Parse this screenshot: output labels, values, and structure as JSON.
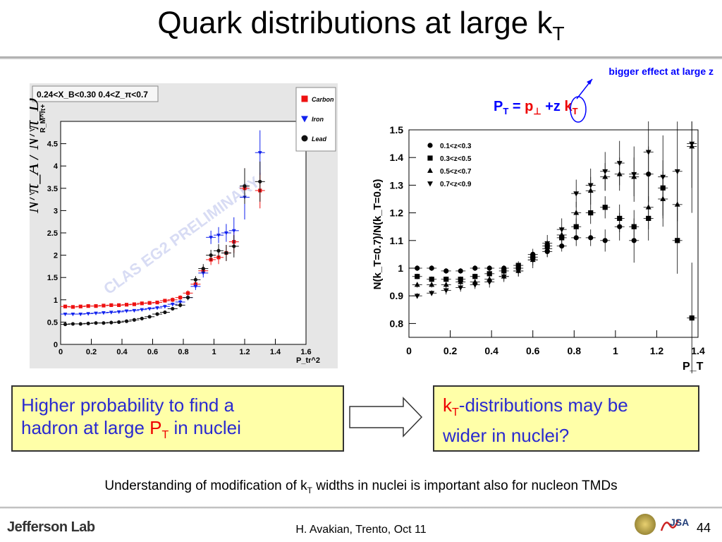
{
  "slide": {
    "title_main": "Quark distributions at large k",
    "title_sub": "T",
    "note": "bigger effect at large z",
    "formula": {
      "pt": "P",
      "pt_sub": "T",
      "eq": " = ",
      "pperp": "p",
      "pperp_sub": "⊥",
      "plus": " +z ",
      "kt": "k",
      "kt_sub": "T"
    },
    "box_left": {
      "line1": "Higher probability to find a",
      "line2_pre": "hadron at large ",
      "p": "P",
      "p_sub": "T",
      "line2_post": " in nuclei"
    },
    "box_right": {
      "k": "k",
      "k_sub": "T",
      "line1_post": "-distributions may be",
      "line2": "wider in nuclei?"
    },
    "bottom_pre": "Understanding of modification of k",
    "bottom_sub": "T",
    "bottom_post": " widths in nuclei is important  also for nucleon TMDs",
    "logo": "Jefferson Lab",
    "seal_text": "JSA",
    "footer": "H. Avakian, Trento, Oct 11",
    "page": "44",
    "colors": {
      "title_text": "#000000",
      "box_fill": "#ffffa8",
      "box_text": "#2a2ad0",
      "highlight_red": "#e00000",
      "accent_blue": "#0000ff"
    }
  },
  "chart_data": [
    {
      "type": "scatter",
      "title": "0.24<X_B<0.30   0.4<Z_π<0.7",
      "ylabel": "R_M^π+",
      "ylabel_big": "N^π_A / N^π_D",
      "xlabel": "P_tr^2",
      "watermark": "CLAS EG2 PRELIMINARY",
      "xlim": [
        0,
        1.6
      ],
      "ylim": [
        0,
        5
      ],
      "xticks": [
        "0",
        "0.2",
        "0.4",
        "0.6",
        "0.8",
        "1",
        "1.2",
        "1.4",
        "1.6"
      ],
      "yticks": [
        "0",
        "0.5",
        "1",
        "1.5",
        "2",
        "2.5",
        "3",
        "3.5",
        "4",
        "4.5"
      ],
      "legend_position": "top-right",
      "series": [
        {
          "name": "Carbon",
          "color": "#ee1111",
          "marker": "square",
          "x": [
            0.03,
            0.08,
            0.13,
            0.18,
            0.23,
            0.28,
            0.33,
            0.38,
            0.43,
            0.48,
            0.53,
            0.58,
            0.63,
            0.68,
            0.73,
            0.78,
            0.83,
            0.88,
            0.93,
            0.98,
            1.03,
            1.08,
            1.13,
            1.2,
            1.3
          ],
          "y": [
            0.85,
            0.84,
            0.85,
            0.86,
            0.86,
            0.87,
            0.88,
            0.88,
            0.89,
            0.9,
            0.92,
            0.93,
            0.94,
            0.98,
            1.0,
            1.05,
            1.15,
            1.35,
            1.65,
            1.9,
            1.95,
            2.05,
            2.3,
            3.5,
            3.45
          ],
          "err": [
            0.04,
            0.03,
            0.03,
            0.03,
            0.03,
            0.03,
            0.03,
            0.03,
            0.03,
            0.03,
            0.03,
            0.04,
            0.04,
            0.04,
            0.05,
            0.05,
            0.06,
            0.08,
            0.1,
            0.12,
            0.15,
            0.18,
            0.25,
            0.45,
            0.4
          ]
        },
        {
          "name": "Iron",
          "color": "#1122ee",
          "marker": "triangle-down",
          "x": [
            0.03,
            0.08,
            0.13,
            0.18,
            0.23,
            0.28,
            0.33,
            0.38,
            0.43,
            0.48,
            0.53,
            0.58,
            0.63,
            0.68,
            0.73,
            0.78,
            0.83,
            0.88,
            0.93,
            0.98,
            1.03,
            1.08,
            1.13,
            1.2,
            1.3
          ],
          "y": [
            0.68,
            0.68,
            0.68,
            0.69,
            0.7,
            0.71,
            0.72,
            0.73,
            0.75,
            0.76,
            0.78,
            0.8,
            0.82,
            0.85,
            0.9,
            0.95,
            1.05,
            1.3,
            1.6,
            2.4,
            2.45,
            2.5,
            2.55,
            3.3,
            4.3
          ],
          "err": [
            0.03,
            0.03,
            0.03,
            0.03,
            0.03,
            0.03,
            0.03,
            0.03,
            0.03,
            0.03,
            0.03,
            0.03,
            0.04,
            0.04,
            0.04,
            0.05,
            0.06,
            0.08,
            0.1,
            0.15,
            0.18,
            0.2,
            0.3,
            0.5,
            0.5
          ]
        },
        {
          "name": "Lead",
          "color": "#111111",
          "marker": "circle",
          "x": [
            0.03,
            0.08,
            0.13,
            0.18,
            0.23,
            0.28,
            0.33,
            0.38,
            0.43,
            0.48,
            0.53,
            0.58,
            0.63,
            0.68,
            0.73,
            0.78,
            0.83,
            0.88,
            0.93,
            0.98,
            1.03,
            1.08,
            1.13,
            1.2,
            1.3
          ],
          "y": [
            0.45,
            0.46,
            0.46,
            0.47,
            0.48,
            0.48,
            0.49,
            0.5,
            0.52,
            0.55,
            0.58,
            0.62,
            0.68,
            0.72,
            0.8,
            0.88,
            1.05,
            1.45,
            1.7,
            2.0,
            2.1,
            2.05,
            2.2,
            3.55,
            3.65
          ],
          "err": [
            0.03,
            0.03,
            0.03,
            0.03,
            0.03,
            0.03,
            0.03,
            0.03,
            0.03,
            0.03,
            0.03,
            0.03,
            0.04,
            0.04,
            0.04,
            0.05,
            0.06,
            0.08,
            0.1,
            0.12,
            0.15,
            0.18,
            0.25,
            0.4,
            0.45
          ]
        }
      ]
    },
    {
      "type": "scatter",
      "ylabel": "N(k_T=0.7)/N(k_T=0.6)",
      "xlabel": "P_T",
      "xlim": [
        0,
        1.4
      ],
      "ylim": [
        0.75,
        1.5
      ],
      "xticks": [
        "0",
        "0.2",
        "0.4",
        "0.6",
        "0.8",
        "1",
        "1.2",
        "1.4"
      ],
      "yticks": [
        "0.8",
        "0.9",
        "1",
        "1.1",
        "1.2",
        "1.3",
        "1.4",
        "1.5"
      ],
      "legend_position": "top-left",
      "series": [
        {
          "name": "0.1<z<0.3",
          "marker": "circle",
          "x": [
            0.04,
            0.11,
            0.18,
            0.25,
            0.32,
            0.39,
            0.46,
            0.53,
            0.6,
            0.67,
            0.74,
            0.81,
            0.88,
            0.95,
            1.02,
            1.09,
            1.16
          ],
          "y": [
            1.0,
            1.0,
            0.99,
            0.99,
            1.0,
            1.0,
            1.0,
            1.0,
            1.05,
            1.06,
            1.08,
            1.11,
            1.11,
            1.1,
            1.15,
            1.1,
            1.34
          ],
          "err": [
            0.01,
            0.01,
            0.01,
            0.01,
            0.01,
            0.01,
            0.01,
            0.015,
            0.02,
            0.02,
            0.02,
            0.03,
            0.03,
            0.04,
            0.05,
            0.08,
            0.1
          ]
        },
        {
          "name": "0.3<z<0.5",
          "marker": "square",
          "x": [
            0.04,
            0.11,
            0.18,
            0.25,
            0.32,
            0.39,
            0.46,
            0.53,
            0.6,
            0.67,
            0.74,
            0.81,
            0.88,
            0.95,
            1.02,
            1.09,
            1.16,
            1.23,
            1.3,
            1.37
          ],
          "y": [
            0.97,
            0.96,
            0.96,
            0.96,
            0.97,
            0.98,
            0.99,
            1.01,
            1.04,
            1.08,
            1.11,
            1.15,
            1.2,
            1.22,
            1.18,
            1.15,
            1.18,
            1.29,
            1.1,
            0.82
          ],
          "err": [
            0.01,
            0.01,
            0.01,
            0.01,
            0.01,
            0.01,
            0.015,
            0.015,
            0.02,
            0.02,
            0.03,
            0.03,
            0.04,
            0.04,
            0.05,
            0.06,
            0.08,
            0.1,
            0.12,
            0.2
          ]
        },
        {
          "name": "0.5<z<0.7",
          "marker": "triangle-up",
          "x": [
            0.04,
            0.11,
            0.18,
            0.25,
            0.32,
            0.39,
            0.46,
            0.53,
            0.6,
            0.67,
            0.74,
            0.81,
            0.88,
            0.95,
            1.02,
            1.09,
            1.16,
            1.23,
            1.3,
            1.37
          ],
          "y": [
            0.94,
            0.94,
            0.94,
            0.95,
            0.95,
            0.96,
            0.97,
            0.99,
            1.03,
            1.07,
            1.12,
            1.2,
            1.28,
            1.33,
            1.34,
            1.33,
            1.22,
            1.25,
            1.23,
            1.44
          ],
          "err": [
            0.01,
            0.01,
            0.01,
            0.01,
            0.01,
            0.015,
            0.015,
            0.02,
            0.02,
            0.03,
            0.03,
            0.04,
            0.05,
            0.05,
            0.06,
            0.07,
            0.08,
            0.1,
            0.12,
            0.15
          ]
        },
        {
          "name": "0.7<z<0.9",
          "marker": "triangle-down",
          "x": [
            0.04,
            0.11,
            0.18,
            0.25,
            0.32,
            0.39,
            0.46,
            0.53,
            0.6,
            0.67,
            0.74,
            0.81,
            0.88,
            0.95,
            1.02,
            1.09,
            1.16,
            1.23,
            1.3,
            1.37
          ],
          "y": [
            0.9,
            0.91,
            0.92,
            0.93,
            0.94,
            0.95,
            0.97,
            0.99,
            1.03,
            1.09,
            1.14,
            1.27,
            1.3,
            1.35,
            1.38,
            1.34,
            1.42,
            1.33,
            1.35,
            1.45
          ],
          "err": [
            0.01,
            0.01,
            0.015,
            0.015,
            0.015,
            0.02,
            0.02,
            0.02,
            0.03,
            0.03,
            0.04,
            0.05,
            0.06,
            0.07,
            0.08,
            0.1,
            0.12,
            0.15,
            0.18,
            0.25
          ]
        }
      ]
    }
  ]
}
